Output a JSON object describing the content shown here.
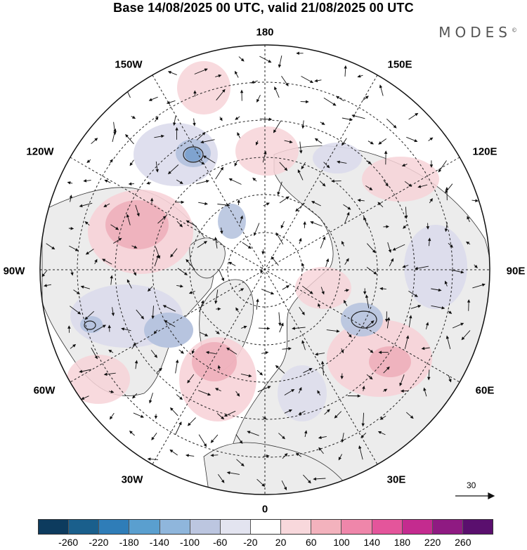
{
  "title": "Base 14/08/2025 00 UTC, valid 21/08/2025 00 UTC",
  "logo": "MODES",
  "logo_mark": "©",
  "longitude_labels": {
    "n": "180",
    "ne": "150E",
    "e1": "120E",
    "e": "90E",
    "se1": "60E",
    "se": "30E",
    "s": "0",
    "sw": "30W",
    "sw1": "60W",
    "w": "90W",
    "nw1": "120W",
    "nw": "150W"
  },
  "vector_scale": {
    "label": "30"
  },
  "colorbar": {
    "colors": [
      "#0d3b5e",
      "#1a5f8c",
      "#2f7db8",
      "#5a9fcf",
      "#8fb6dc",
      "#bcc6e0",
      "#e3e4f0",
      "#ffffff",
      "#f8d8dc",
      "#f3b2bd",
      "#ef86aa",
      "#e4559b",
      "#c42b8f",
      "#8f1a82",
      "#5a0f6e"
    ],
    "tick_labels": [
      "-260",
      "-220",
      "-180",
      "-140",
      "-100",
      "-60",
      "-20",
      "20",
      "60",
      "100",
      "140",
      "180",
      "220",
      "260"
    ]
  },
  "map_colors": {
    "land": "#ececec",
    "positive_light": "#f7d3d8",
    "positive_mid": "#eeaab6",
    "negative_light": "#dcdcec",
    "negative_mid": "#b7c4df",
    "negative_strong": "#7fa3cf"
  }
}
